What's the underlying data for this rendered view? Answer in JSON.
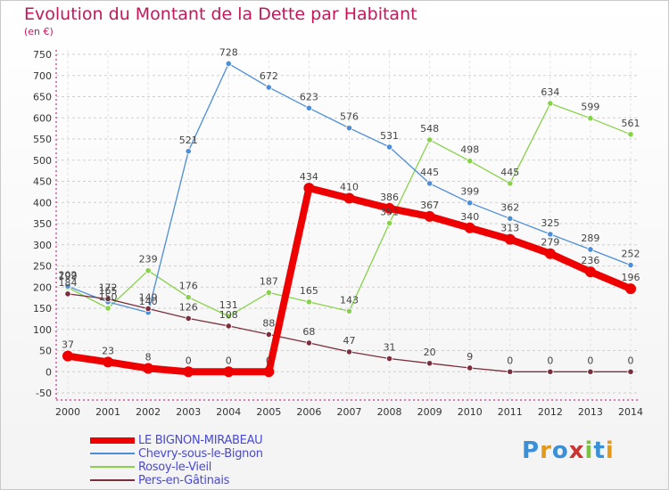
{
  "header": {
    "title": "Evolution du Montant de la Dette par Habitant",
    "subtitle": "(en €)"
  },
  "chart_data": {
    "type": "line",
    "title": "Evolution du Montant de la Dette par Habitant",
    "ylabel": "(en €)",
    "xlabel": "",
    "ylim": [
      -50,
      750
    ],
    "y_ticks": [
      -50,
      0,
      50,
      100,
      150,
      200,
      250,
      300,
      350,
      400,
      450,
      500,
      550,
      600,
      650,
      700,
      750
    ],
    "x": [
      2000,
      2001,
      2002,
      2003,
      2004,
      2005,
      2006,
      2007,
      2008,
      2009,
      2010,
      2011,
      2012,
      2013,
      2014
    ],
    "grid": "horizontal dashed",
    "series": [
      {
        "name": "Rosoy-le-Vieil",
        "color": "#88d24a",
        "values": [
          199,
          150,
          239,
          176,
          131,
          187,
          165,
          143,
          351,
          548,
          498,
          445,
          634,
          599,
          561
        ],
        "labels": [
          "199",
          "150",
          "239",
          "176",
          "131",
          "187",
          "165",
          "143",
          "351",
          "548",
          "498",
          "445",
          "634",
          "599",
          "561"
        ]
      },
      {
        "name": "Chevry-sous-le-Bignon",
        "color": "#4d8ed9",
        "values": [
          202,
          165,
          140,
          521,
          728,
          672,
          623,
          576,
          531,
          445,
          399,
          362,
          325,
          289,
          252
        ],
        "labels": [
          "202",
          "165",
          "140",
          "521",
          "728",
          "672",
          "623",
          "576",
          "531",
          "445",
          "399",
          "362",
          "325",
          "289",
          "252"
        ]
      },
      {
        "name": "Pers-en-Gâtinais",
        "color": "#7b2f3c",
        "values": [
          184,
          172,
          149,
          126,
          108,
          88,
          68,
          47,
          31,
          20,
          9,
          0,
          0,
          0,
          0
        ],
        "labels": [
          "184",
          "172",
          "149",
          "126",
          "108",
          "88",
          "68",
          "47",
          "31",
          "20",
          "9",
          "0",
          "0",
          "0",
          "0"
        ]
      },
      {
        "name": "LE BIGNON-MIRABEAU",
        "color": "#ee0000",
        "values": [
          37,
          23,
          8,
          0,
          0,
          0,
          434,
          410,
          386,
          367,
          340,
          313,
          279,
          236,
          196
        ],
        "labels": [
          "37",
          "23",
          "8",
          "0",
          "0",
          "0",
          "434",
          "410",
          "386",
          "367",
          "340",
          "313",
          "279",
          "236",
          "196"
        ]
      }
    ],
    "legend": {
      "position": "bottom-left",
      "entries": [
        "LE BIGNON-MIRABEAU",
        "Chevry-sous-le-Bignon",
        "Rosoy-le-Vieil",
        "Pers-en-Gâtinais"
      ]
    }
  },
  "legend": {
    "entries": [
      {
        "label": "LE BIGNON-MIRABEAU",
        "color": "#ee0000",
        "thickness": "thick"
      },
      {
        "label": "Chevry-sous-le-Bignon",
        "color": "#4d8ed9",
        "thickness": "thin"
      },
      {
        "label": "Rosoy-le-Vieil",
        "color": "#88d24a",
        "thickness": "thin"
      },
      {
        "label": "Pers-en-Gâtinais",
        "color": "#7b2f3c",
        "thickness": "thin"
      }
    ]
  },
  "logo": {
    "text": "Proxiti",
    "letters": [
      "P",
      "r",
      "o",
      "x",
      "i",
      "t",
      "i"
    ],
    "colors": [
      "#3a8fd6",
      "#e39a1a",
      "#3a8fd6",
      "#cc3333",
      "#7cc242",
      "#3a8fd6",
      "#e39a1a"
    ]
  }
}
